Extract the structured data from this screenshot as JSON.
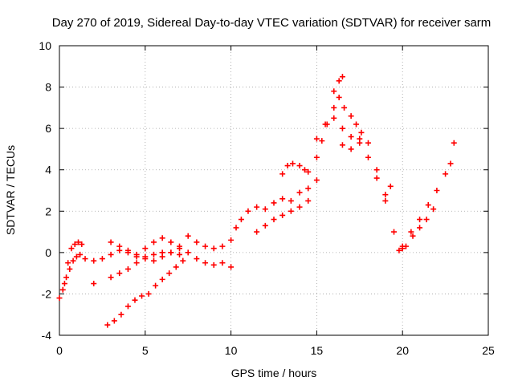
{
  "chart_data": {
    "type": "scatter",
    "title": "Day 270 of 2019, Sidereal Day-to-day VTEC variation (SDTVAR) for receiver sarm",
    "xlabel": "GPS time / hours",
    "ylabel": "SDTVAR / TECUs",
    "xlim": [
      0,
      25
    ],
    "ylim": [
      -4,
      10
    ],
    "xticks": [
      0,
      5,
      10,
      15,
      20,
      25
    ],
    "yticks": [
      -4,
      -2,
      0,
      2,
      4,
      6,
      8,
      10
    ],
    "grid": true,
    "marker": "+",
    "color": "#ff0000",
    "series": [
      {
        "x": [
          0.0,
          0.2,
          0.4,
          0.6,
          0.8,
          1.0,
          1.2,
          1.5,
          2.0,
          2.5,
          3.0,
          3.5,
          4.0,
          4.5,
          5.0,
          5.5,
          6.0,
          6.5,
          7.0
        ],
        "y": [
          -2.2,
          -1.8,
          -1.2,
          -0.8,
          -0.4,
          -0.2,
          -0.1,
          -0.3,
          -0.4,
          -0.3,
          -0.1,
          0.1,
          0.0,
          -0.1,
          -0.2,
          -0.1,
          0.0,
          0.0,
          -0.1
        ]
      },
      {
        "x": [
          0.3,
          0.5,
          0.7,
          0.9,
          1.1,
          1.3
        ],
        "y": [
          -1.5,
          -0.5,
          0.2,
          0.4,
          0.5,
          0.4
        ]
      },
      {
        "x": [
          2.0,
          3.0,
          3.5,
          4.0,
          4.5,
          5.0,
          5.5,
          6.0,
          6.5,
          7.0
        ],
        "y": [
          -1.5,
          -1.2,
          -1.0,
          -0.8,
          -0.5,
          -0.3,
          -0.4,
          -0.2,
          0.0,
          0.2
        ]
      },
      {
        "x": [
          2.8,
          3.2,
          3.6,
          4.0,
          4.4,
          4.8,
          5.2,
          5.6,
          6.0,
          6.4,
          6.8,
          7.2
        ],
        "y": [
          -3.5,
          -3.3,
          -3.0,
          -2.6,
          -2.3,
          -2.1,
          -2.0,
          -1.6,
          -1.3,
          -1.0,
          -0.7,
          -0.4
        ]
      },
      {
        "x": [
          3.0,
          3.5,
          4.0,
          4.5,
          5.0,
          5.5,
          6.0,
          6.5,
          7.0
        ],
        "y": [
          0.5,
          0.3,
          0.1,
          -0.2,
          0.2,
          0.5,
          0.7,
          0.5,
          0.3
        ]
      },
      {
        "x": [
          7.5,
          8.0,
          8.5,
          9.0,
          9.5,
          10.0
        ],
        "y": [
          0.0,
          -0.3,
          -0.5,
          -0.6,
          -0.5,
          -0.7
        ]
      },
      {
        "x": [
          7.5,
          8.0,
          8.5,
          9.0,
          9.5,
          10.0,
          10.3,
          10.6,
          11.0,
          11.5,
          12.0,
          12.5,
          13.0,
          13.5,
          14.0,
          14.5,
          15.0
        ],
        "y": [
          0.8,
          0.5,
          0.3,
          0.2,
          0.3,
          0.6,
          1.2,
          1.6,
          2.0,
          2.2,
          2.1,
          2.4,
          2.6,
          2.5,
          2.9,
          3.1,
          3.5
        ]
      },
      {
        "x": [
          11.5,
          12.0,
          12.5,
          13.0,
          13.5,
          14.0,
          14.5
        ],
        "y": [
          1.0,
          1.3,
          1.6,
          1.8,
          2.0,
          2.2,
          2.5
        ]
      },
      {
        "x": [
          13.0,
          13.3,
          13.6,
          14.0,
          14.3
        ],
        "y": [
          3.8,
          4.2,
          4.3,
          4.2,
          4.0
        ]
      },
      {
        "x": [
          14.5,
          15.0,
          15.3,
          15.6,
          16.0,
          16.3,
          16.6,
          17.0,
          17.3,
          17.6
        ],
        "y": [
          3.9,
          4.6,
          5.4,
          6.2,
          7.0,
          7.5,
          7.0,
          6.6,
          6.2,
          5.8
        ]
      },
      {
        "x": [
          15.0,
          15.5,
          16.0,
          16.5,
          17.0,
          17.5,
          18.0,
          18.5,
          19.0,
          19.5,
          20.0
        ],
        "y": [
          5.5,
          6.2,
          6.5,
          6.0,
          5.6,
          5.5,
          5.3,
          4.0,
          2.5,
          1.0,
          0.2
        ]
      },
      {
        "x": [
          16.0,
          16.3,
          16.5
        ],
        "y": [
          7.8,
          8.3,
          8.5
        ]
      },
      {
        "x": [
          16.5,
          17.0,
          17.5,
          18.0,
          18.5,
          19.0,
          19.3
        ],
        "y": [
          5.2,
          5.0,
          5.3,
          4.6,
          3.6,
          2.8,
          3.2
        ]
      },
      {
        "x": [
          19.8,
          20.2,
          20.6,
          21.0,
          21.4,
          21.8
        ],
        "y": [
          0.1,
          0.3,
          0.8,
          1.2,
          1.6,
          2.1
        ]
      },
      {
        "x": [
          20.0,
          20.5,
          21.0,
          21.5,
          22.0,
          22.5,
          22.8,
          23.0
        ],
        "y": [
          0.3,
          1.0,
          1.6,
          2.3,
          3.0,
          3.8,
          4.3,
          5.3
        ]
      }
    ]
  }
}
